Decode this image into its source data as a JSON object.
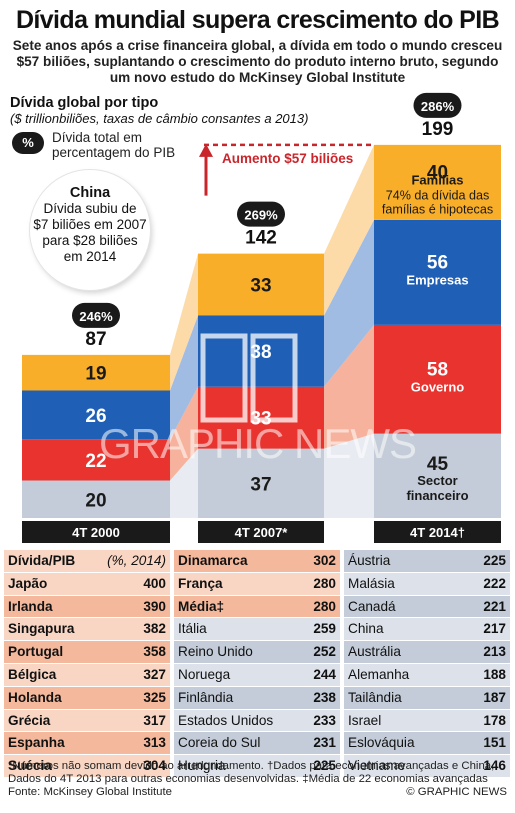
{
  "title": "Dívida mundial supera crescimento do PIB",
  "subtitle": "Sete anos após a crise financeira global, a dívida em todo o mundo cresceu $57 biliões, suplantando o crescimento do produto interno bruto, segundo um novo estudo do McKinsey Global Institute",
  "chart_title": "Dívida global por tipo",
  "chart_subtitle": "($ trillionbiliões, taxas de câmbio consantes a 2013)",
  "legend_badge": "%",
  "legend_text_1": "Dívida total em",
  "legend_text_2": "percentagem do PIB",
  "china": {
    "title": "China",
    "line1": "Dívida subiu de",
    "line2": "$7 biliões em 2007",
    "line3": "para $28 biliões",
    "line4": "em 2014"
  },
  "watermark": "GRAPHIC NEWS",
  "chart_data": {
    "type": "bar",
    "stacked": true,
    "categories": [
      "4T 2000",
      "4T 2007*",
      "4T 2014†"
    ],
    "series": [
      {
        "name": "Sector financeiro",
        "values": [
          20,
          37,
          45
        ],
        "color": "#c3ccd8"
      },
      {
        "name": "Governo",
        "values": [
          22,
          33,
          58
        ],
        "color": "#e8332e"
      },
      {
        "name": "Empresas",
        "values": [
          26,
          38,
          56
        ],
        "color": "#1f5fb6"
      },
      {
        "name": "Famílias",
        "values": [
          19,
          33,
          40
        ],
        "color": "#f9ae2a"
      }
    ],
    "totals": [
      87,
      142,
      199
    ],
    "debt_to_gdp": [
      "246%",
      "269%",
      "286%"
    ],
    "annotation": "Aumento $57 biliões",
    "families_note": "74% da dívida das famílias é hipotecas",
    "segment_labels_2014": {
      "families": "Famílias",
      "corporate": "Empresas",
      "government": "Governo",
      "financial_1": "Sector",
      "financial_2": "financeiro"
    }
  },
  "table": {
    "header_label": "Dívida/PIB",
    "header_unit": "(%, 2014)",
    "col1": [
      {
        "name": "Japão",
        "value": "400"
      },
      {
        "name": "Irlanda",
        "value": "390"
      },
      {
        "name": "Singapura",
        "value": "382"
      },
      {
        "name": "Portugal",
        "value": "358"
      },
      {
        "name": "Bélgica",
        "value": "327"
      },
      {
        "name": "Holanda",
        "value": "325"
      },
      {
        "name": "Grécia",
        "value": "317"
      },
      {
        "name": "Espanha",
        "value": "313"
      },
      {
        "name": "Suécia",
        "value": "304"
      }
    ],
    "col2": [
      {
        "name": "Dinamarca",
        "value": "302"
      },
      {
        "name": "França",
        "value": "280"
      },
      {
        "name": "Média‡",
        "value": "280"
      },
      {
        "name": "Itália",
        "value": "259"
      },
      {
        "name": "Reino Unido",
        "value": "252"
      },
      {
        "name": "Noruega",
        "value": "244"
      },
      {
        "name": "Finlândia",
        "value": "238"
      },
      {
        "name": "Estados Unidos",
        "value": "233"
      },
      {
        "name": "Coreia do Sul",
        "value": "231"
      },
      {
        "name": "Hungria",
        "value": "225"
      }
    ],
    "col3": [
      {
        "name": "Áustria",
        "value": "225"
      },
      {
        "name": "Malásia",
        "value": "222"
      },
      {
        "name": "Canadá",
        "value": "221"
      },
      {
        "name": "China",
        "value": "217"
      },
      {
        "name": "Austrália",
        "value": "213"
      },
      {
        "name": "Alemanha",
        "value": "188"
      },
      {
        "name": "Tailândia",
        "value": "187"
      },
      {
        "name": "Israel",
        "value": "178"
      },
      {
        "name": "Eslováquia",
        "value": "151"
      },
      {
        "name": "Vietname",
        "value": "146"
      }
    ]
  },
  "footnote_1": "*Números não somam devido ao arredondamento. †Dados para economias avançadas e China,",
  "footnote_2": "Dados do 4T 2013 para outras economias desenvolvidas. ‡Média de 22 economias avançadas",
  "footnote_3": "Fonte: McKinsey Global Institute",
  "credit": "© GRAPHIC NEWS"
}
